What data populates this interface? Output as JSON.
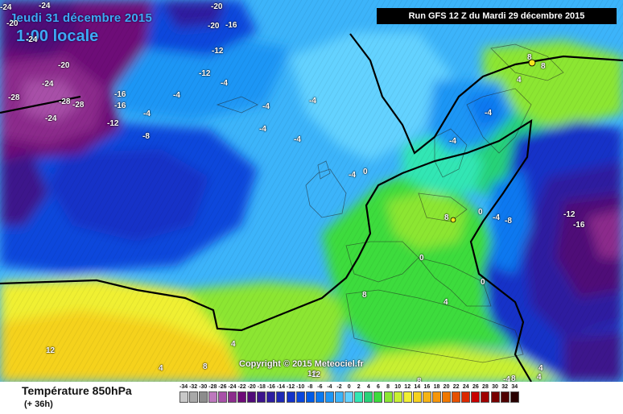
{
  "header": {
    "date": "Jeudi 31 décembre 2015",
    "time": "1:00 locale",
    "run": "Run GFS 12 Z du Mardi 29 décembre 2015"
  },
  "copyright": "Copyright © 2015 Meteociel.fr",
  "legend": {
    "title": "Température 850hPa",
    "range": "(+ 36h)",
    "scale": [
      {
        "value": "-34",
        "color": "#c8c8c8"
      },
      {
        "value": "-32",
        "color": "#a8a8a8"
      },
      {
        "value": "-30",
        "color": "#8c8c8c"
      },
      {
        "value": "-28",
        "color": "#bd78bd"
      },
      {
        "value": "-26",
        "color": "#a850a8"
      },
      {
        "value": "-24",
        "color": "#8c2c8c"
      },
      {
        "value": "-22",
        "color": "#6e0a78"
      },
      {
        "value": "-20",
        "color": "#500a78"
      },
      {
        "value": "-18",
        "color": "#3c148c"
      },
      {
        "value": "-16",
        "color": "#2d1ea0"
      },
      {
        "value": "-14",
        "color": "#1e28b4"
      },
      {
        "value": "-12",
        "color": "#1432c8"
      },
      {
        "value": "-10",
        "color": "#0a46dc"
      },
      {
        "value": "-8",
        "color": "#005ae6"
      },
      {
        "value": "-6",
        "color": "#0a78f0"
      },
      {
        "value": "-4",
        "color": "#1e96f5"
      },
      {
        "value": "-2",
        "color": "#3cb4fa"
      },
      {
        "value": "0",
        "color": "#64d2ff"
      },
      {
        "value": "2",
        "color": "#32e6b4"
      },
      {
        "value": "4",
        "color": "#28d278"
      },
      {
        "value": "6",
        "color": "#3cdc3c"
      },
      {
        "value": "8",
        "color": "#8ce632"
      },
      {
        "value": "10",
        "color": "#c8f032"
      },
      {
        "value": "12",
        "color": "#f0f032"
      },
      {
        "value": "14",
        "color": "#f5d21e"
      },
      {
        "value": "16",
        "color": "#f5b414"
      },
      {
        "value": "18",
        "color": "#f5960a"
      },
      {
        "value": "20",
        "color": "#f07800"
      },
      {
        "value": "22",
        "color": "#e65000"
      },
      {
        "value": "24",
        "color": "#dc2800"
      },
      {
        "value": "26",
        "color": "#c80000"
      },
      {
        "value": "28",
        "color": "#a00000"
      },
      {
        "value": "30",
        "color": "#780000"
      },
      {
        "value": "32",
        "color": "#500000"
      },
      {
        "value": "34",
        "color": "#280000"
      }
    ]
  },
  "isotherm_labels": [
    {
      "text": "-24"
    },
    {
      "text": "-24"
    },
    {
      "text": "-20"
    },
    {
      "text": "-20"
    },
    {
      "text": "-20"
    },
    {
      "text": "-24"
    },
    {
      "text": "-20"
    },
    {
      "text": "-16"
    },
    {
      "text": "-12"
    },
    {
      "text": "-12"
    },
    {
      "text": "-24"
    },
    {
      "text": "-28"
    },
    {
      "text": "-28"
    },
    {
      "text": "-28"
    },
    {
      "text": "-16"
    },
    {
      "text": "-16"
    },
    {
      "text": "-24"
    },
    {
      "text": "-12"
    },
    {
      "text": "-4"
    },
    {
      "text": "-4"
    },
    {
      "text": "-4"
    },
    {
      "text": "-4"
    },
    {
      "text": "-4"
    },
    {
      "text": "-4"
    },
    {
      "text": "-4"
    },
    {
      "text": "-8"
    },
    {
      "text": "-4"
    },
    {
      "text": "0"
    },
    {
      "text": "8"
    },
    {
      "text": "8"
    },
    {
      "text": "4"
    },
    {
      "text": "-4"
    },
    {
      "text": "-4"
    },
    {
      "text": "8"
    },
    {
      "text": "0"
    },
    {
      "text": "-4"
    },
    {
      "text": "-8"
    },
    {
      "text": "-12"
    },
    {
      "text": "-16"
    },
    {
      "text": "0"
    },
    {
      "text": "0"
    },
    {
      "text": "8"
    },
    {
      "text": "4"
    },
    {
      "text": "4"
    },
    {
      "text": "4"
    },
    {
      "text": "8"
    },
    {
      "text": "12"
    },
    {
      "text": "12"
    },
    {
      "text": "8"
    },
    {
      "text": "8"
    },
    {
      "text": "4"
    },
    {
      "text": "4"
    },
    {
      "text": "12"
    },
    {
      "text": "-4"
    }
  ]
}
